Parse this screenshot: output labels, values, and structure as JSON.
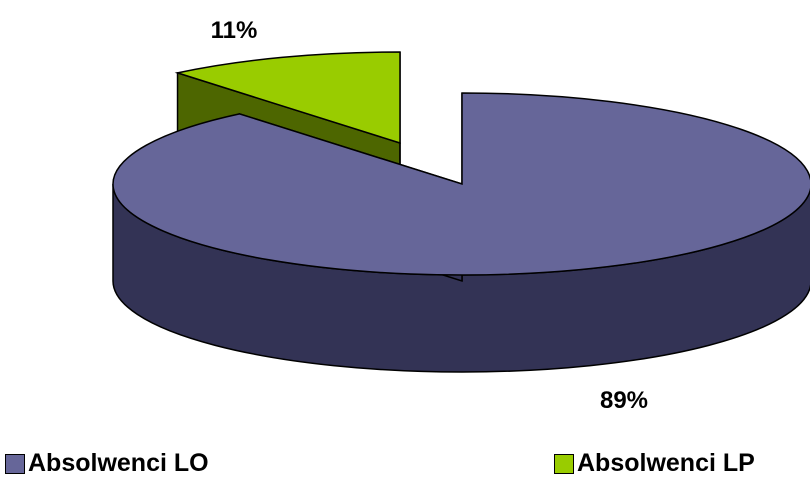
{
  "chart_data": {
    "type": "pie",
    "style": "3d-exploded",
    "title": "",
    "slices": [
      {
        "label": "Absolwenci LO",
        "value": 89,
        "value_label": "89%",
        "color": "#666699",
        "side_color": "#333355"
      },
      {
        "label": "Absolwenci LP",
        "value": 11,
        "value_label": "11%",
        "color": "#99CC00",
        "side_color": "#4D6600"
      }
    ],
    "legend_position": "bottom"
  }
}
